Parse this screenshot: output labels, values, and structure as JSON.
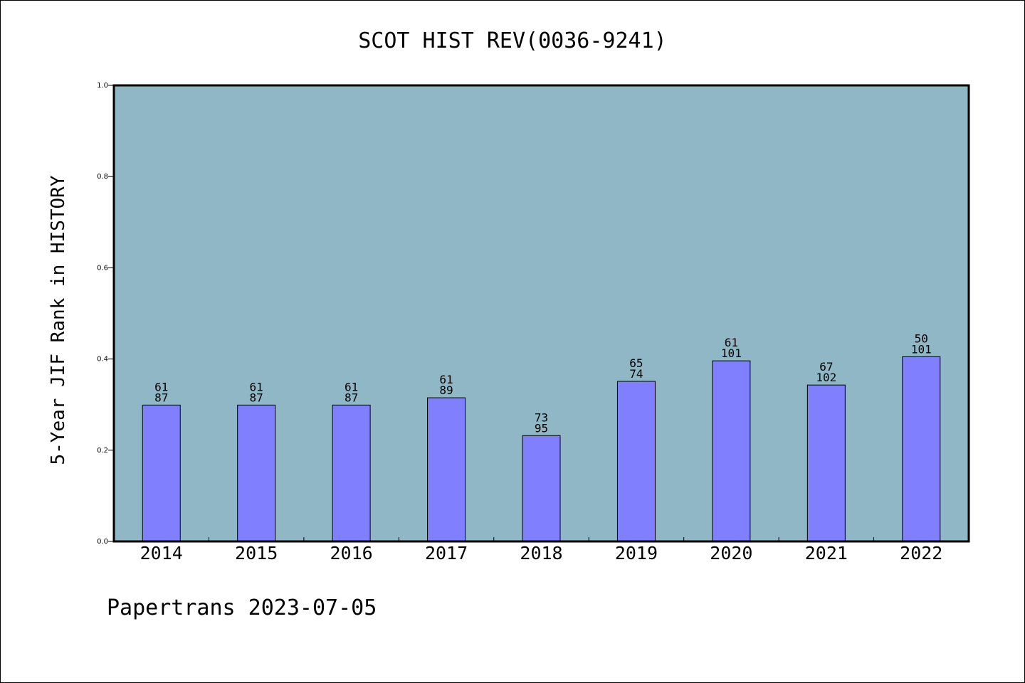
{
  "footer": "Papertrans 2023-07-05",
  "colors": {
    "plot_background": "#8fb7c5",
    "bar_fill": "#8080ff",
    "bar_stroke": "#000000"
  },
  "chart_data": {
    "type": "bar",
    "title": "SCOT HIST REV(0036-9241)",
    "xlabel": "",
    "ylabel": "5-Year JIF Rank in HISTORY",
    "ylim": [
      0,
      1.0
    ],
    "yticks": [
      "0.0",
      "0.2",
      "0.4",
      "0.6",
      "0.8",
      "1.0"
    ],
    "grid": false,
    "categories": [
      "2014",
      "2015",
      "2016",
      "2017",
      "2018",
      "2019",
      "2020",
      "2021",
      "2022"
    ],
    "values": [
      0.299,
      0.299,
      0.299,
      0.315,
      0.232,
      0.351,
      0.396,
      0.343,
      0.405
    ],
    "rank": [
      "61",
      "61",
      "61",
      "61",
      "73",
      "65",
      "61",
      "67",
      "50"
    ],
    "total": [
      "87",
      "87",
      "87",
      "89",
      "95",
      "74",
      "101",
      "102",
      "101"
    ]
  }
}
